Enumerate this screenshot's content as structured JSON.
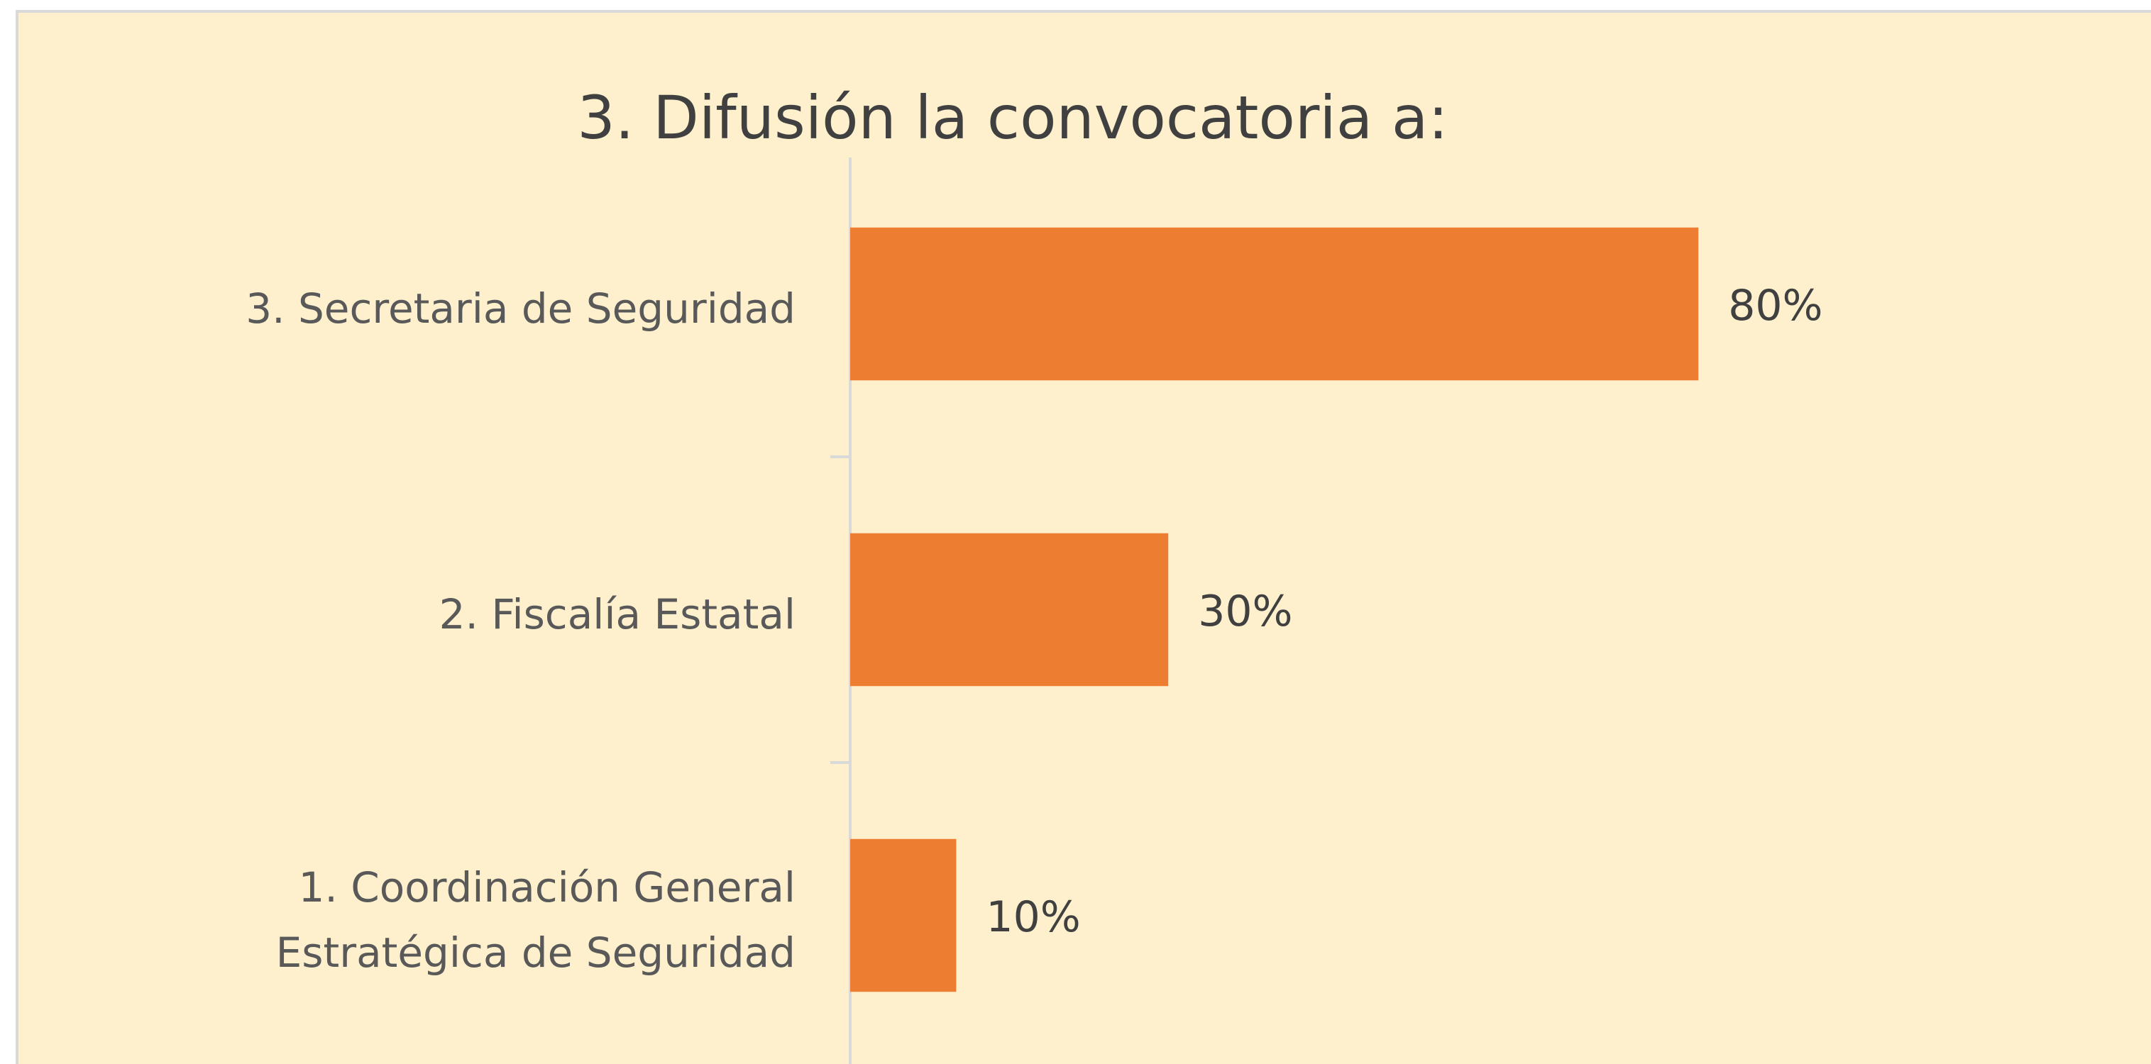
{
  "chart_data": {
    "type": "bar",
    "orientation": "horizontal",
    "title": "3. Difusión la convocatoria a:",
    "categories": [
      "3. Secretaria de Seguridad",
      "2. Fiscalía Estatal",
      "1. Coordinación General Estratégica de Seguridad"
    ],
    "values": [
      80,
      30,
      10
    ],
    "value_labels": [
      "80%",
      "30%",
      "10%"
    ],
    "color": "#ED7D31",
    "xlim": [
      0,
      100
    ]
  }
}
